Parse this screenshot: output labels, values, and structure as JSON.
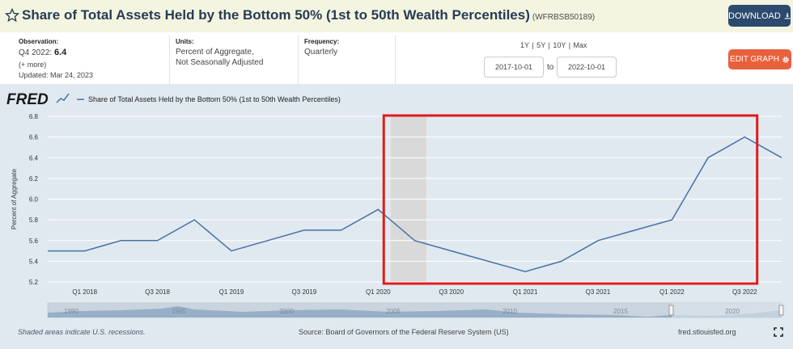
{
  "header": {
    "title": "Share of Total Assets Held by the Bottom 50% (1st to 50th Wealth Percentiles)",
    "series_id": "(WFRBSB50189)",
    "download_label": "DOWNLOAD"
  },
  "info": {
    "observation_label": "Observation:",
    "observation_period": "Q4 2022:",
    "observation_value": "6.4",
    "more_label": "(+ more)",
    "updated": "Updated: Mar 24, 2023",
    "units_label": "Units:",
    "units_line1": "Percent of Aggregate,",
    "units_line2": "Not Seasonally Adjusted",
    "frequency_label": "Frequency:",
    "frequency_value": "Quarterly",
    "range_links": "1Y | 5Y | 10Y | Max",
    "start_date": "2017-10-01",
    "to_label": "to",
    "end_date": "2022-10-01",
    "edit_graph_label": "EDIT GRAPH"
  },
  "chart_data": {
    "type": "line",
    "logo": "FRED",
    "legend": "Share of Total Assets Held by the Bottom 50% (1st to 50th Wealth Percentiles)",
    "ylabel": "Percent of Aggregate",
    "ylim": [
      5.2,
      6.8
    ],
    "yticks": [
      "5.2",
      "5.4",
      "5.6",
      "5.8",
      "6.0",
      "6.2",
      "6.4",
      "6.6",
      "6.8"
    ],
    "xticks": [
      {
        "label": "Q1 2018",
        "x": "2018-01-01"
      },
      {
        "label": "Q3 2018",
        "x": "2018-07-01"
      },
      {
        "label": "Q1 2019",
        "x": "2019-01-01"
      },
      {
        "label": "Q3 2019",
        "x": "2019-07-01"
      },
      {
        "label": "Q1 2020",
        "x": "2020-01-01"
      },
      {
        "label": "Q3 2020",
        "x": "2020-07-01"
      },
      {
        "label": "Q1 2021",
        "x": "2021-01-01"
      },
      {
        "label": "Q3 2021",
        "x": "2021-07-01"
      },
      {
        "label": "Q1 2022",
        "x": "2022-01-01"
      },
      {
        "label": "Q3 2022",
        "x": "2022-07-01"
      }
    ],
    "x": [
      "2017-10-01",
      "2018-01-01",
      "2018-04-01",
      "2018-07-01",
      "2018-10-01",
      "2019-01-01",
      "2019-04-01",
      "2019-07-01",
      "2019-10-01",
      "2020-01-01",
      "2020-04-01",
      "2020-07-01",
      "2020-10-01",
      "2021-01-01",
      "2021-04-01",
      "2021-07-01",
      "2021-10-01",
      "2022-01-01",
      "2022-04-01",
      "2022-07-01",
      "2022-10-01"
    ],
    "values": [
      5.5,
      5.5,
      5.6,
      5.6,
      5.8,
      5.5,
      5.6,
      5.7,
      5.7,
      5.9,
      5.6,
      5.5,
      5.4,
      5.3,
      5.4,
      5.6,
      5.7,
      5.8,
      6.4,
      6.6,
      6.4
    ],
    "recession": {
      "start": "2020-02-01",
      "end": "2020-04-30"
    },
    "highlight_box": {
      "start": "2020-01-15",
      "end": "2022-08-01",
      "color": "#e01b1b"
    },
    "grid": true,
    "navigator_labels": [
      "1990",
      "1995",
      "2000",
      "2005",
      "2010",
      "2015",
      "2020"
    ],
    "colors": {
      "line": "#4572a7",
      "grid": "#ffffff",
      "recession": "#d9d9d9"
    }
  },
  "footer": {
    "recession_note": "Shaded areas indicate U.S. recessions.",
    "source": "Source: Board of Governors of the Federal Reserve System (US)",
    "url": "fred.stlouisfed.org"
  },
  "icons": {
    "star": "star-icon",
    "download": "download-icon",
    "gear": "gear-icon",
    "fullscreen": "fullscreen-icon"
  }
}
